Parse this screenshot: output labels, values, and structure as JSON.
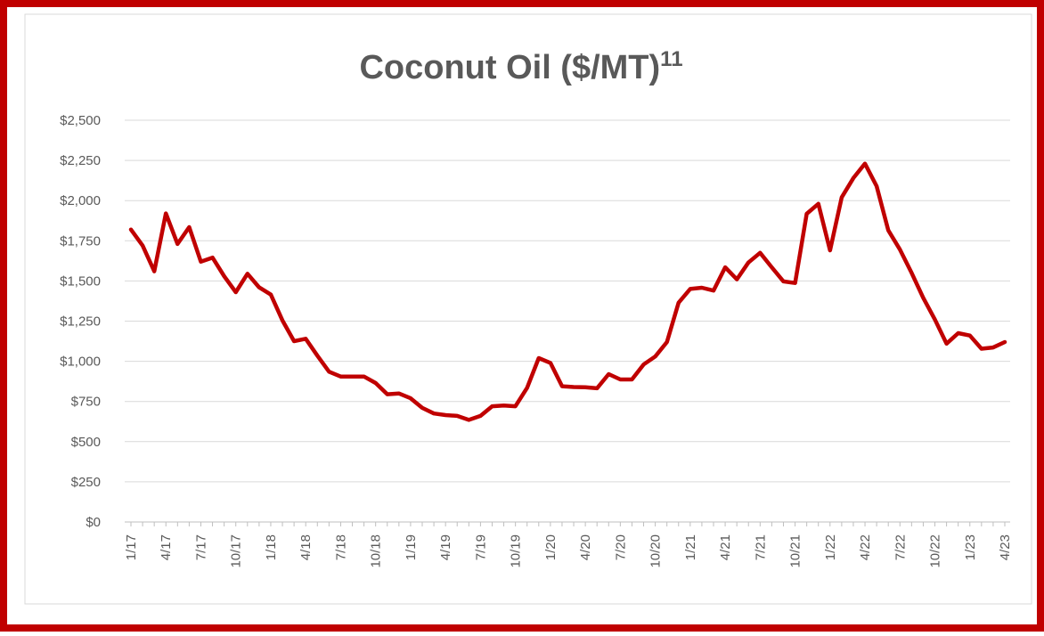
{
  "chart_data": {
    "type": "line",
    "title": "Coconut Oil ($/MT)",
    "title_note": "11",
    "categories": [
      "1/17",
      null,
      null,
      "4/17",
      null,
      null,
      "7/17",
      null,
      null,
      "10/17",
      null,
      null,
      "1/18",
      null,
      null,
      "4/18",
      null,
      null,
      "7/18",
      null,
      null,
      "10/18",
      null,
      null,
      "1/19",
      null,
      null,
      "4/19",
      null,
      null,
      "7/19",
      null,
      null,
      "10/19",
      null,
      null,
      "1/20",
      null,
      null,
      "4/20",
      null,
      null,
      "7/20",
      null,
      null,
      "10/20",
      null,
      null,
      "1/21",
      null,
      null,
      "4/21",
      null,
      null,
      "7/21",
      null,
      null,
      "10/21",
      null,
      null,
      "1/22",
      null,
      null,
      "4/22",
      null,
      null,
      "7/22",
      null,
      null,
      "10/22",
      null,
      null,
      "1/23",
      null,
      null,
      "4/23"
    ],
    "series": [
      {
        "color": "#c00000",
        "values": [
          1820,
          1720,
          1560,
          1920,
          1730,
          1835,
          1620,
          1645,
          1530,
          1430,
          1545,
          1460,
          1415,
          1255,
          1125,
          1140,
          1035,
          935,
          905,
          905,
          905,
          865,
          795,
          800,
          770,
          710,
          675,
          665,
          660,
          635,
          660,
          720,
          725,
          720,
          835,
          1020,
          990,
          845,
          840,
          838,
          832,
          920,
          887,
          887,
          980,
          1030,
          1120,
          1365,
          1450,
          1458,
          1440,
          1585,
          1510,
          1615,
          1675,
          1585,
          1497,
          1487,
          1918,
          1980,
          1690,
          2020,
          2140,
          2230,
          2090,
          1815,
          1695,
          1550,
          1395,
          1260,
          1110,
          1175,
          1160,
          1078,
          1086,
          1120
        ]
      }
    ],
    "ylim": [
      0,
      2500
    ],
    "yticks": [
      {
        "value": 0,
        "label": "$0"
      },
      {
        "value": 250,
        "label": "$250"
      },
      {
        "value": 500,
        "label": "$500"
      },
      {
        "value": 750,
        "label": "$750"
      },
      {
        "value": 1000,
        "label": "$1,000"
      },
      {
        "value": 1250,
        "label": "$1,250"
      },
      {
        "value": 1500,
        "label": "$1,500"
      },
      {
        "value": 1750,
        "label": "$1,750"
      },
      {
        "value": 2000,
        "label": "$2,000"
      },
      {
        "value": 2250,
        "label": "$2,250"
      },
      {
        "value": 2500,
        "label": "$2,500"
      }
    ],
    "grid": true
  }
}
